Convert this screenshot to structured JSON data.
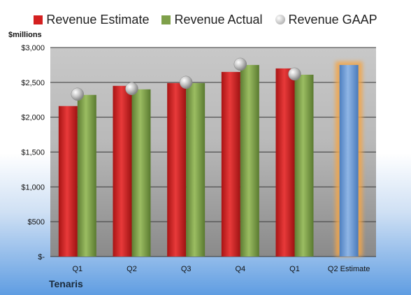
{
  "chart_data": {
    "type": "bar",
    "categories": [
      "Q1",
      "Q2",
      "Q3",
      "Q4",
      "Q1",
      "Q2 Estimate"
    ],
    "series": [
      {
        "name": "Revenue Estimate",
        "color": "#d42020",
        "values": [
          2160,
          2450,
          2490,
          2650,
          2700,
          null
        ]
      },
      {
        "name": "Revenue Actual",
        "color": "#7fa04a",
        "values": [
          2320,
          2400,
          2490,
          2750,
          2610,
          null
        ]
      },
      {
        "name": "Revenue GAAP",
        "color": "#bfbfbf",
        "values": [
          2330,
          2410,
          2500,
          2760,
          2620,
          null
        ]
      }
    ],
    "forecast": {
      "category": "Q2 Estimate",
      "value": 2750,
      "color": "#6b9bd6",
      "glow": "#f3a64a"
    },
    "ylabel": "$millions",
    "ylim": [
      0,
      3000
    ],
    "yticks": [
      0,
      500,
      1000,
      1500,
      2000,
      2500,
      3000
    ],
    "ytick_labels": [
      "$-",
      "$500",
      "$1,000",
      "$1,500",
      "$2,000",
      "$2,500",
      "$3,000"
    ],
    "grid": true,
    "legend_position": "top"
  },
  "company": "Tenaris"
}
